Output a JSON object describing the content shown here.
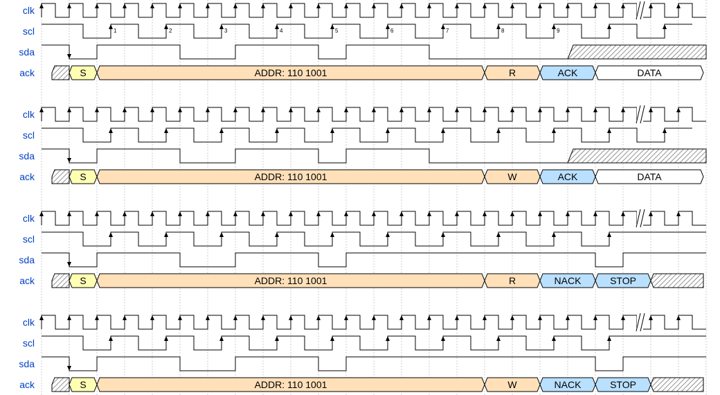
{
  "signal_names": [
    "clk",
    "scl",
    "sda",
    "ack"
  ],
  "colors": {
    "label": "#0041c4",
    "start": "#ffffb4",
    "addr": "#ffe0b9",
    "rw": "#ffe0b9",
    "ack": "#b9e0ff",
    "data": "#ffffff",
    "stop": "#b9e0ff"
  },
  "diagrams": [
    {
      "sda": [
        1,
        0,
        1,
        1,
        1,
        0,
        0,
        1,
        1,
        1,
        0,
        1,
        1,
        1,
        0,
        0,
        0,
        0,
        0,
        "x",
        "x",
        "x",
        "x",
        "x"
      ],
      "scl_edge_numbers": [
        "1",
        "2",
        "3",
        "4",
        "5",
        "6",
        "7",
        "8",
        "9"
      ],
      "scl_tail": "pulse",
      "bus": [
        {
          "kind": "start",
          "label": "S"
        },
        {
          "kind": "addr",
          "label": "ADDR: 110 1001"
        },
        {
          "kind": "rw",
          "label": "R"
        },
        {
          "kind": "ack",
          "label": "ACK"
        },
        {
          "kind": "data",
          "label": "DATA"
        }
      ]
    },
    {
      "sda": [
        1,
        0,
        1,
        1,
        1,
        0,
        0,
        1,
        1,
        1,
        0,
        1,
        1,
        1,
        0,
        0,
        0,
        0,
        0,
        "x",
        "x",
        "x",
        "x",
        "x"
      ],
      "scl_edge_numbers": [],
      "scl_tail": "pulse",
      "bus": [
        {
          "kind": "start",
          "label": "S"
        },
        {
          "kind": "addr",
          "label": "ADDR: 110 1001"
        },
        {
          "kind": "rw",
          "label": "W"
        },
        {
          "kind": "ack",
          "label": "ACK"
        },
        {
          "kind": "data",
          "label": "DATA"
        }
      ]
    },
    {
      "sda": [
        1,
        0,
        1,
        1,
        1,
        0,
        0,
        1,
        1,
        1,
        0,
        1,
        1,
        1,
        1,
        1,
        1,
        1,
        1,
        1,
        0,
        1,
        1,
        1
      ],
      "scl_edge_numbers": [],
      "scl_tail": "high",
      "bus": [
        {
          "kind": "start",
          "label": "S"
        },
        {
          "kind": "addr",
          "label": "ADDR: 110 1001"
        },
        {
          "kind": "rw",
          "label": "R"
        },
        {
          "kind": "ack",
          "label": "NACK"
        },
        {
          "kind": "stop",
          "label": "STOP"
        }
      ]
    },
    {
      "sda": [
        1,
        0,
        1,
        1,
        1,
        0,
        0,
        1,
        1,
        1,
        0,
        1,
        1,
        1,
        1,
        1,
        1,
        1,
        1,
        1,
        0,
        1,
        1,
        1
      ],
      "scl_edge_numbers": [],
      "scl_tail": "high",
      "bus": [
        {
          "kind": "start",
          "label": "S"
        },
        {
          "kind": "addr",
          "label": "ADDR: 110 1001"
        },
        {
          "kind": "rw",
          "label": "W"
        },
        {
          "kind": "ack",
          "label": "NACK"
        },
        {
          "kind": "stop",
          "label": "STOP"
        }
      ]
    }
  ]
}
